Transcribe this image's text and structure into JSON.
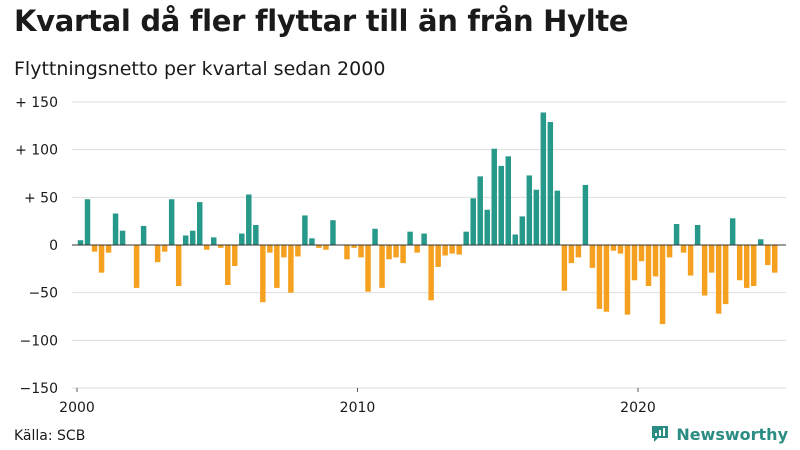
{
  "title": "Kvartal då fler flyttar till än från Hylte",
  "subtitle": "Flyttningsnetto per kvartal sedan 2000",
  "source": "Källa: SCB",
  "brand": "Newsworthy",
  "colors": {
    "positive": "#26998a",
    "negative": "#f5a01e",
    "brand": "#2a8c82"
  },
  "chart_data": {
    "type": "bar",
    "x_start_year": 2000,
    "periods_per_year": 4,
    "ylim": [
      -150,
      150
    ],
    "yticks": [
      150,
      100,
      50,
      0,
      -50,
      -100,
      -150
    ],
    "ytick_labels": [
      "+ 150",
      "+ 100",
      "+  50",
      "0",
      "−50",
      "−100",
      "−150"
    ],
    "xtick_labels": [
      "2000",
      "2010",
      "2020"
    ],
    "grid": true,
    "values": [
      5,
      48,
      -7,
      -29,
      -8,
      33,
      15,
      0,
      -45,
      20,
      0,
      -18,
      -7,
      48,
      -43,
      10,
      15,
      45,
      -5,
      8,
      -3,
      -42,
      -22,
      12,
      53,
      21,
      -60,
      -8,
      -45,
      -13,
      -50,
      -12,
      31,
      7,
      -3,
      -5,
      26,
      0,
      -15,
      -3,
      -13,
      -49,
      17,
      -45,
      -15,
      -13,
      -19,
      14,
      -8,
      12,
      -58,
      -23,
      -11,
      -9,
      -10,
      14,
      49,
      72,
      37,
      101,
      83,
      93,
      11,
      30,
      73,
      58,
      139,
      129,
      57,
      -48,
      -19,
      -13,
      63,
      -24,
      -67,
      -70,
      -6,
      -9,
      -73,
      -37,
      -17,
      -43,
      -33,
      -83,
      -13,
      22,
      -8,
      -32,
      21,
      -53,
      -29,
      -72,
      -62,
      28,
      -37,
      -45,
      -43,
      6,
      -21,
      -29
    ]
  }
}
